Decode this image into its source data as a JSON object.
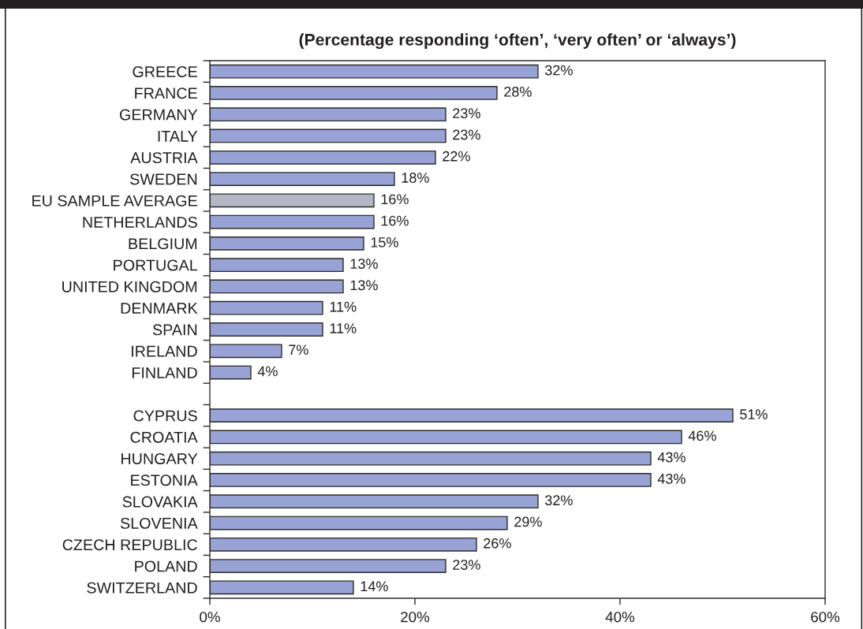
{
  "chart_data": {
    "type": "bar",
    "orientation": "horizontal",
    "title": "(Percentage responding ‘often’, ‘very often’ or ‘always’)",
    "categories": [
      "GREECE",
      "FRANCE",
      "GERMANY",
      "ITALY",
      "AUSTRIA",
      "SWEDEN",
      "EU SAMPLE AVERAGE",
      "NETHERLANDS",
      "BELGIUM",
      "PORTUGAL",
      "UNITED KINGDOM",
      "DENMARK",
      "SPAIN",
      "IRELAND",
      "FINLAND",
      null,
      "CYPRUS",
      "CROATIA",
      "HUNGARY",
      "ESTONIA",
      "SLOVAKIA",
      "SLOVENIA",
      "CZECH REPUBLIC",
      "POLAND",
      "SWITZERLAND"
    ],
    "values": [
      32,
      28,
      23,
      23,
      22,
      18,
      16,
      16,
      15,
      13,
      13,
      11,
      11,
      7,
      4,
      null,
      51,
      46,
      43,
      43,
      32,
      29,
      26,
      23,
      14
    ],
    "value_labels": [
      "32%",
      "28%",
      "23%",
      "23%",
      "22%",
      "18%",
      "16%",
      "16%",
      "15%",
      "13%",
      "13%",
      "11%",
      "11%",
      "7%",
      "4%",
      null,
      "51%",
      "46%",
      "43%",
      "43%",
      "32%",
      "29%",
      "26%",
      "23%",
      "14%"
    ],
    "colors": [
      "#98a2d4",
      "#98a2d4",
      "#98a2d4",
      "#98a2d4",
      "#98a2d4",
      "#98a2d4",
      "#b4b7c3",
      "#98a2d4",
      "#98a2d4",
      "#98a2d4",
      "#98a2d4",
      "#98a2d4",
      "#98a2d4",
      "#98a2d4",
      "#98a2d4",
      null,
      "#98a2d4",
      "#98a2d4",
      "#98a2d4",
      "#98a2d4",
      "#98a2d4",
      "#98a2d4",
      "#98a2d4",
      "#98a2d4",
      "#98a2d4"
    ],
    "xlim": [
      0,
      60
    ],
    "xticks": [
      {
        "value": 0,
        "label": "0%"
      },
      {
        "value": 20,
        "label": "20%"
      },
      {
        "value": 40,
        "label": "40%"
      },
      {
        "value": 60,
        "label": "60%"
      }
    ]
  }
}
